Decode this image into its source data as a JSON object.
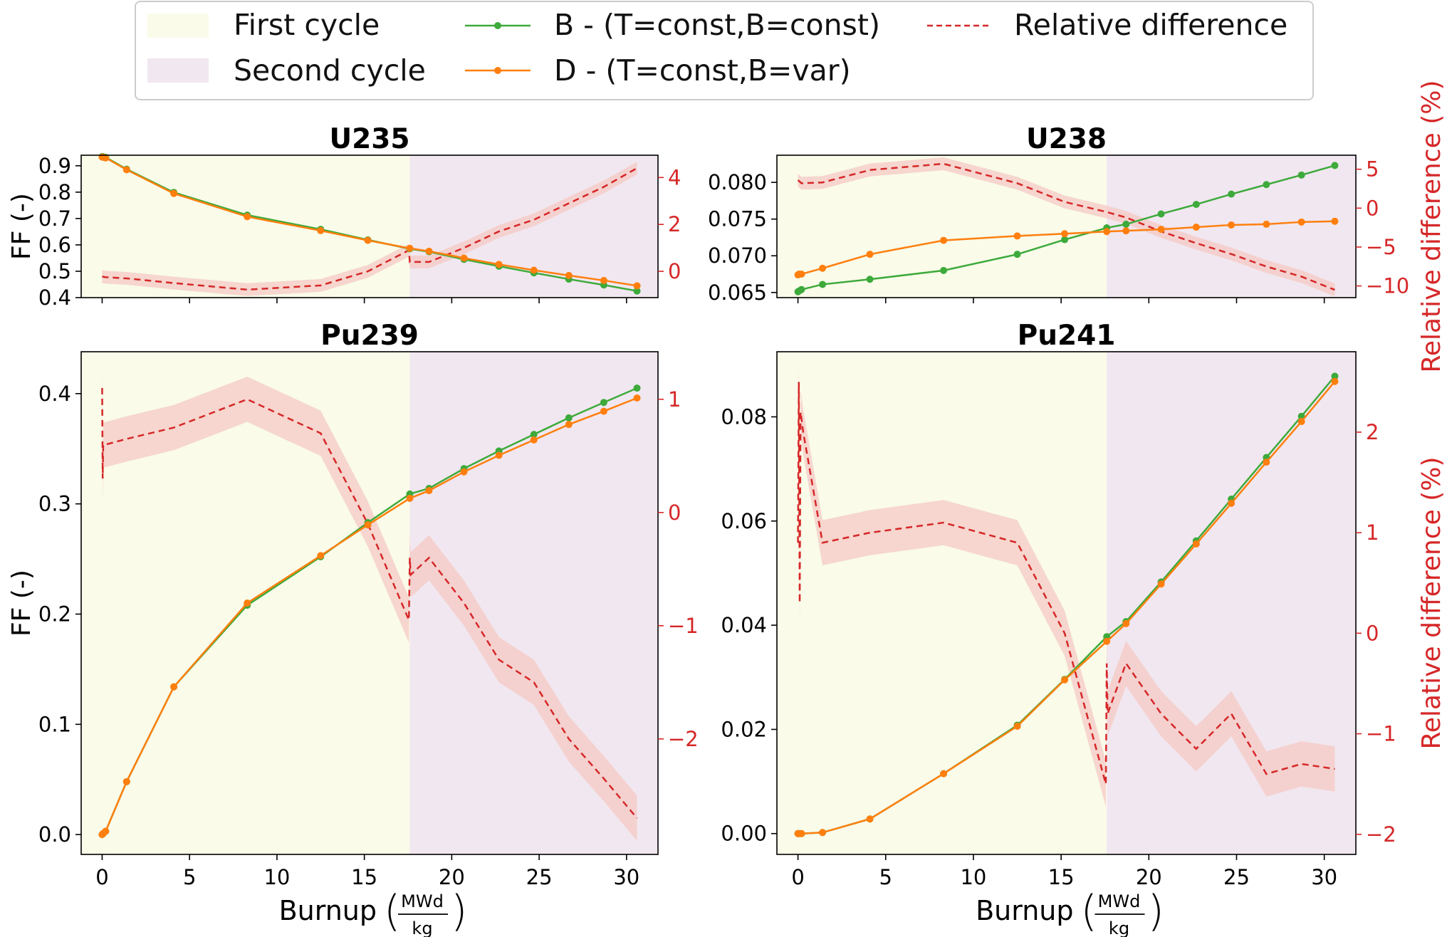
{
  "legend": {
    "items": [
      {
        "label": "First cycle",
        "kind": "patch",
        "color": "#fafbe9"
      },
      {
        "label": "Second cycle",
        "kind": "patch",
        "color": "#f1e7f0"
      },
      {
        "label": "B - (T=const,B=const)",
        "kind": "line-marker",
        "color": "#3daa3b"
      },
      {
        "label": "D - (T=const,B=var)",
        "kind": "line-marker",
        "color": "#ff7f0e"
      },
      {
        "label": "Relative difference",
        "kind": "dashed",
        "color": "#d62728"
      }
    ]
  },
  "colors": {
    "first_cycle": "#fafbe9",
    "second_cycle": "#f1e7f0",
    "series_b": "#3daa3b",
    "series_d": "#ff7f0e",
    "relative": "#d62728",
    "relative_band": "#f4c9c4"
  },
  "cycle_boundary_burnup": 17.6,
  "chart_data": [
    {
      "type": "line",
      "title": "U235",
      "xlabel": "",
      "ylabel": "FF (-)",
      "ylabel_right": "",
      "xlim": [
        -1.2,
        31.8
      ],
      "ylim": [
        0.4,
        0.94
      ],
      "ylim_right": [
        -1.12,
        4.95
      ],
      "xticks": [
        0,
        5,
        10,
        15,
        20,
        25,
        30
      ],
      "xtick_labels": [],
      "yticks": [
        0.4,
        0.5,
        0.6,
        0.7,
        0.8,
        0.9
      ],
      "ytick_labels": [
        "0.4",
        "0.5",
        "0.6",
        "0.7",
        "0.8",
        "0.9"
      ],
      "yticks_right": [
        0,
        2,
        4
      ],
      "ytick_labels_right": [
        "0",
        "2",
        "4"
      ],
      "x": [
        0,
        0.06,
        0.2,
        1.4,
        4.1,
        8.3,
        12.5,
        15.2,
        17.6,
        18.7,
        20.7,
        22.7,
        24.7,
        26.7,
        28.7,
        30.6
      ],
      "series": [
        {
          "name": "B - (T=const,B=const)",
          "values": [
            0.935,
            0.934,
            0.932,
            0.887,
            0.799,
            0.713,
            0.659,
            0.619,
            0.585,
            0.574,
            0.545,
            0.519,
            0.494,
            0.47,
            0.448,
            0.425
          ]
        },
        {
          "name": "D - (T=const,B=var)",
          "values": [
            0.933,
            0.932,
            0.93,
            0.885,
            0.795,
            0.707,
            0.654,
            0.617,
            0.587,
            0.576,
            0.55,
            0.526,
            0.504,
            0.484,
            0.465,
            0.445
          ]
        }
      ],
      "relative_difference": {
        "name": "Relative difference",
        "x": [
          0,
          0.2,
          1.4,
          4.1,
          8.3,
          12.5,
          15.2,
          17.55,
          17.6,
          17.65,
          18.7,
          20.7,
          22.7,
          24.7,
          26.7,
          28.7,
          30.6
        ],
        "values": [
          -0.22,
          -0.25,
          -0.3,
          -0.5,
          -0.78,
          -0.6,
          0,
          0.9,
          0.4,
          0.4,
          0.4,
          1.0,
          1.7,
          2.2,
          2.9,
          3.6,
          4.4
        ]
      }
    },
    {
      "type": "line",
      "title": "U238",
      "xlabel": "",
      "ylabel": "",
      "ylabel_right": "Relative difference (%)",
      "xlim": [
        -1.2,
        31.8
      ],
      "ylim": [
        0.0643,
        0.0837
      ],
      "ylim_right": [
        -11.5,
        6.8
      ],
      "xticks": [
        0,
        5,
        10,
        15,
        20,
        25,
        30
      ],
      "xtick_labels": [],
      "yticks": [
        0.065,
        0.07,
        0.075,
        0.08
      ],
      "ytick_labels": [
        "0.065",
        "0.070",
        "0.075",
        "0.080"
      ],
      "yticks_right": [
        -10,
        -5,
        0,
        5
      ],
      "ytick_labels_right": [
        "−10",
        "−5",
        "0",
        "5"
      ],
      "x": [
        0,
        0.06,
        0.2,
        1.4,
        4.1,
        8.3,
        12.5,
        15.2,
        17.6,
        18.7,
        20.7,
        22.7,
        24.7,
        26.7,
        28.7,
        30.6
      ],
      "series": [
        {
          "name": "B - (T=const,B=const)",
          "values": [
            0.0651,
            0.0652,
            0.0654,
            0.0661,
            0.0668,
            0.068,
            0.0702,
            0.0722,
            0.0738,
            0.0743,
            0.0757,
            0.077,
            0.0784,
            0.0797,
            0.081,
            0.0823
          ]
        },
        {
          "name": "D - (T=const,B=var)",
          "values": [
            0.0674,
            0.0675,
            0.0675,
            0.0683,
            0.0702,
            0.0721,
            0.0727,
            0.073,
            0.0733,
            0.0734,
            0.0736,
            0.0739,
            0.0742,
            0.0743,
            0.0746,
            0.0747
          ]
        }
      ],
      "relative_difference": {
        "name": "Relative difference",
        "x": [
          0,
          0.2,
          1.4,
          4.1,
          8.3,
          12.5,
          15.2,
          17.6,
          18.7,
          20.7,
          22.7,
          24.7,
          26.7,
          28.7,
          30.6
        ],
        "values": [
          3.6,
          3.2,
          3.3,
          4.9,
          5.7,
          3.2,
          0.8,
          -0.5,
          -1.2,
          -3.0,
          -4.5,
          -5.9,
          -7.5,
          -8.8,
          -10.5
        ]
      }
    },
    {
      "type": "line",
      "title": "Pu239",
      "xlabel": "Burnup",
      "xlabel_fraction": {
        "numerator": "MWd",
        "denominator": "kg"
      },
      "ylabel": "FF (-)",
      "ylabel_right": "",
      "xlim": [
        -1.2,
        31.8
      ],
      "ylim": [
        -0.018,
        0.438
      ],
      "ylim_right": [
        -3.02,
        1.42
      ],
      "xticks": [
        0,
        5,
        10,
        15,
        20,
        25,
        30
      ],
      "xtick_labels": [
        "0",
        "5",
        "10",
        "15",
        "20",
        "25",
        "30"
      ],
      "yticks": [
        0,
        0.1,
        0.2,
        0.3,
        0.4
      ],
      "ytick_labels": [
        "0.0",
        "0.1",
        "0.2",
        "0.3",
        "0.4"
      ],
      "yticks_right": [
        -2,
        -1,
        0,
        1
      ],
      "ytick_labels_right": [
        "−2",
        "−1",
        "0",
        "1"
      ],
      "x": [
        0,
        0.06,
        0.2,
        1.4,
        4.1,
        8.3,
        12.5,
        15.2,
        17.6,
        18.7,
        20.7,
        22.7,
        24.7,
        26.7,
        28.7,
        30.6
      ],
      "series": [
        {
          "name": "B - (T=const,B=const)",
          "values": [
            0.0,
            0.001,
            0.003,
            0.048,
            0.134,
            0.208,
            0.252,
            0.283,
            0.309,
            0.314,
            0.332,
            0.348,
            0.363,
            0.378,
            0.392,
            0.405
          ]
        },
        {
          "name": "D - (T=const,B=var)",
          "values": [
            0.0,
            0.001,
            0.003,
            0.048,
            0.134,
            0.21,
            0.253,
            0.281,
            0.305,
            0.312,
            0.329,
            0.344,
            0.358,
            0.372,
            0.384,
            0.396
          ]
        }
      ],
      "relative_difference": {
        "name": "Relative difference",
        "x": [
          0,
          0.03,
          0.06,
          0.2,
          1.4,
          4.1,
          8.3,
          12.5,
          15.2,
          17.55,
          17.6,
          17.65,
          18.7,
          20.7,
          22.7,
          24.7,
          26.7,
          28.7,
          30.6
        ],
        "values": [
          1.1,
          0.3,
          0.6,
          0.6,
          0.65,
          0.75,
          1.0,
          0.7,
          -0.1,
          -0.95,
          -0.4,
          -0.55,
          -0.4,
          -0.8,
          -1.3,
          -1.5,
          -2.0,
          -2.35,
          -2.7
        ]
      }
    },
    {
      "type": "line",
      "title": "Pu241",
      "xlabel": "Burnup",
      "xlabel_fraction": {
        "numerator": "MWd",
        "denominator": "kg"
      },
      "ylabel": "",
      "ylabel_right": "Relative difference (%)",
      "xlim": [
        -1.2,
        31.8
      ],
      "ylim": [
        -0.004,
        0.0925
      ],
      "ylim_right": [
        -2.2,
        2.8
      ],
      "xticks": [
        0,
        5,
        10,
        15,
        20,
        25,
        30
      ],
      "xtick_labels": [
        "0",
        "5",
        "10",
        "15",
        "20",
        "25",
        "30"
      ],
      "yticks": [
        0,
        0.02,
        0.04,
        0.06,
        0.08
      ],
      "ytick_labels": [
        "0.00",
        "0.02",
        "0.04",
        "0.06",
        "0.08"
      ],
      "yticks_right": [
        -2,
        -1,
        0,
        1,
        2
      ],
      "ytick_labels_right": [
        "−2",
        "−1",
        "0",
        "1",
        "2"
      ],
      "x": [
        0,
        0.06,
        0.2,
        1.4,
        4.1,
        8.3,
        12.5,
        15.2,
        17.6,
        18.7,
        20.7,
        22.7,
        24.7,
        26.7,
        28.7,
        30.6
      ],
      "series": [
        {
          "name": "B - (T=const,B=const)",
          "values": [
            0.0,
            0.0,
            0.0,
            0.0002,
            0.0028,
            0.0115,
            0.0208,
            0.0296,
            0.0378,
            0.0407,
            0.0483,
            0.0562,
            0.0642,
            0.0722,
            0.0801,
            0.0878
          ]
        },
        {
          "name": "D - (T=const,B=var)",
          "values": [
            0.0,
            0.0,
            0.0,
            0.0002,
            0.0028,
            0.0115,
            0.0206,
            0.0295,
            0.0369,
            0.0403,
            0.0479,
            0.0556,
            0.0634,
            0.0713,
            0.0791,
            0.0868
          ]
        }
      ],
      "relative_difference": {
        "name": "Relative difference",
        "x": [
          0,
          0.05,
          0.1,
          0.15,
          0.3,
          1.4,
          4.1,
          8.3,
          12.5,
          15.2,
          17.55,
          17.6,
          17.65,
          18.7,
          20.7,
          22.7,
          24.7,
          26.7,
          28.7,
          30.6
        ],
        "values": [
          0.9,
          2.5,
          0.3,
          2.2,
          2.0,
          0.9,
          1.0,
          1.1,
          0.9,
          0.0,
          -1.5,
          -0.3,
          -0.8,
          -0.3,
          -0.8,
          -1.15,
          -0.8,
          -1.4,
          -1.3,
          -1.35
        ]
      }
    }
  ]
}
